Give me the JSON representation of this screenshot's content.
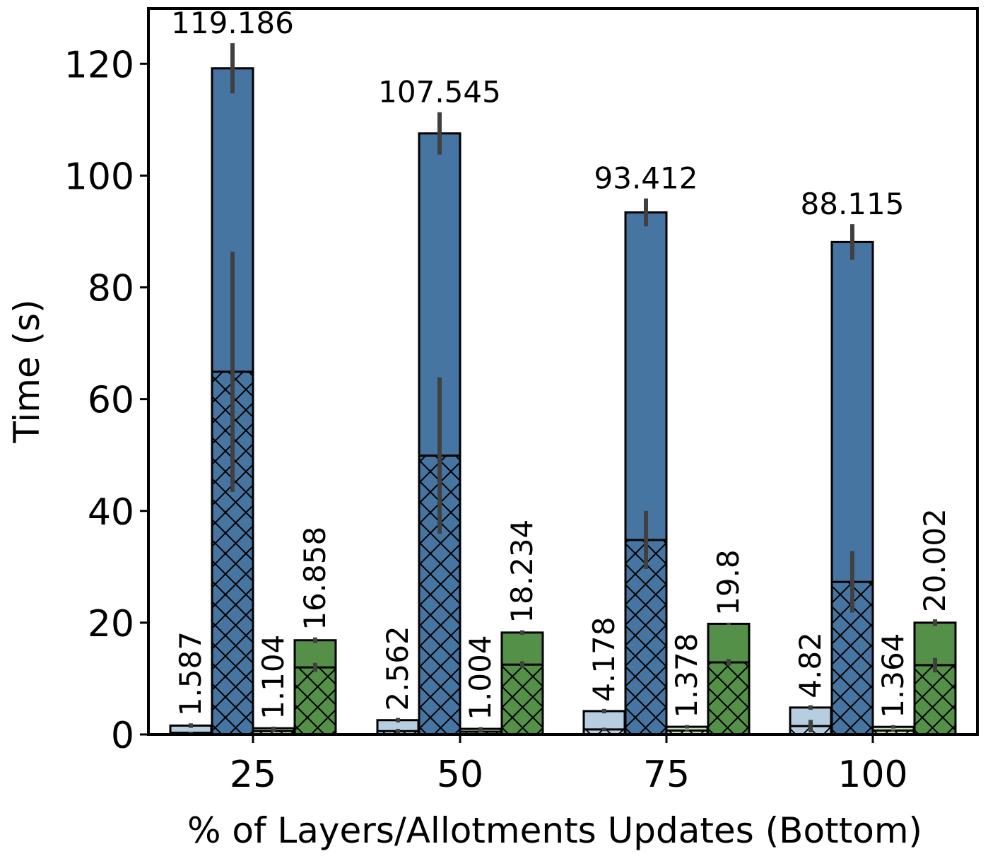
{
  "chart_data": {
    "type": "bar",
    "xlabel": "% of Layers/Allotments Updates (Bottom)",
    "ylabel": "Time (s)",
    "ylim": [
      0,
      130
    ],
    "yticks": [
      0,
      20,
      40,
      60,
      80,
      100,
      120
    ],
    "categories": [
      "25",
      "50",
      "75",
      "100"
    ],
    "grid": false,
    "legend": "none",
    "series": [
      {
        "color": "#b7cde0",
        "hatch_color": "#b7cde0",
        "hatch_values": [
          0.3,
          0.6,
          0.9,
          1.5
        ],
        "values": [
          1.587,
          2.562,
          4.178,
          4.82
        ],
        "errors": [
          0.4,
          0.4,
          0.4,
          0.4
        ],
        "hatch_errors": [
          0.2,
          0.4,
          0.3,
          1.1
        ],
        "labels": [
          "1.587",
          "2.562",
          "4.178",
          "4.82"
        ],
        "label_rotation": "vertical"
      },
      {
        "color": "#4675a2",
        "hatch_color": "#4675a2",
        "hatch_values": [
          64.9,
          49.9,
          34.8,
          27.3
        ],
        "values": [
          119.186,
          107.545,
          93.412,
          88.115
        ],
        "errors": [
          4.5,
          3.8,
          2.5,
          3.2
        ],
        "hatch_errors": [
          21.5,
          14.0,
          5.2,
          5.5
        ],
        "labels": [
          "119.186",
          "107.545",
          "93.412",
          "88.115"
        ],
        "label_rotation": "horizontal"
      },
      {
        "color": "#c7e0b2",
        "hatch_color": "#c7e0b2",
        "hatch_values": [
          0.6,
          0.5,
          0.7,
          0.7
        ],
        "values": [
          1.104,
          1.004,
          1.378,
          1.364
        ],
        "errors": [
          0.3,
          0.3,
          0.3,
          0.3
        ],
        "hatch_errors": [
          0.2,
          0.2,
          0.2,
          0.2
        ],
        "labels": [
          "1.104",
          "1.004",
          "1.378",
          "1.364"
        ],
        "label_rotation": "vertical"
      },
      {
        "color": "#549047",
        "hatch_color": "#549047",
        "hatch_values": [
          12.0,
          12.5,
          12.9,
          12.4
        ],
        "values": [
          16.858,
          18.234,
          19.8,
          20.002
        ],
        "errors": [
          0.5,
          0.4,
          0.2,
          0.6
        ],
        "hatch_errors": [
          0.8,
          0.6,
          0.6,
          1.3
        ],
        "labels": [
          "16.858",
          "18.234",
          "19.8",
          "20.002"
        ],
        "label_rotation": "vertical"
      }
    ]
  }
}
